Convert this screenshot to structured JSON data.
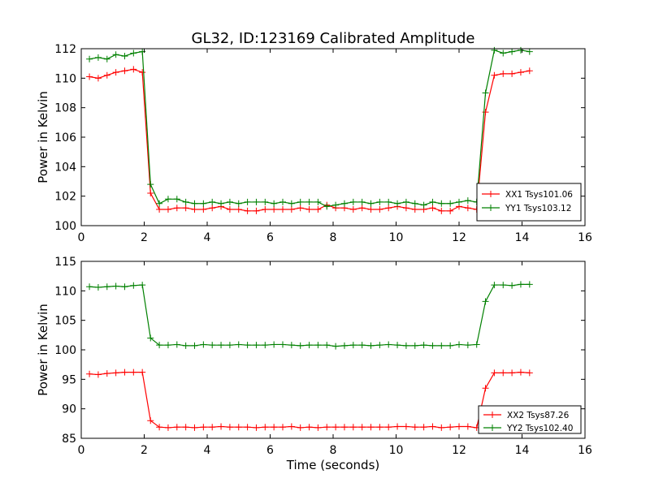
{
  "figure": {
    "title": "GL32, ID:123169 Calibrated Amplitude",
    "xlabel": "Time (seconds)",
    "colors": {
      "red": "#ff0000",
      "green": "#008000"
    }
  },
  "chart_data": [
    {
      "type": "line",
      "title": "GL32, ID:123169 Calibrated Amplitude",
      "xlabel": "",
      "ylabel": "Power in Kelvin",
      "xlim": [
        0,
        16
      ],
      "ylim": [
        100,
        112
      ],
      "xticks": [
        "0",
        "2",
        "4",
        "6",
        "8",
        "10",
        "12",
        "14",
        "16"
      ],
      "yticks": [
        "100",
        "102",
        "104",
        "106",
        "108",
        "110",
        "112"
      ],
      "legend_position": "lower-right",
      "grid": false,
      "x": [
        0.26,
        0.54,
        0.82,
        1.1,
        1.38,
        1.66,
        1.94,
        2.2,
        2.48,
        2.76,
        3.04,
        3.32,
        3.6,
        3.88,
        4.16,
        4.44,
        4.72,
        5.0,
        5.28,
        5.56,
        5.84,
        6.12,
        6.4,
        6.68,
        6.96,
        7.24,
        7.52,
        7.8,
        8.08,
        8.36,
        8.64,
        8.92,
        9.2,
        9.48,
        9.76,
        10.04,
        10.32,
        10.6,
        10.88,
        11.16,
        11.44,
        11.72,
        12.0,
        12.28,
        12.56,
        12.84,
        13.12,
        13.4,
        13.68,
        13.96,
        14.24
      ],
      "series": [
        {
          "name": "XX1 Tsys101.06",
          "color": "#ff0000",
          "values": [
            110.1,
            110.0,
            110.2,
            110.4,
            110.5,
            110.6,
            110.4,
            102.2,
            101.1,
            101.1,
            101.2,
            101.2,
            101.1,
            101.1,
            101.2,
            101.3,
            101.1,
            101.1,
            101.0,
            101.0,
            101.1,
            101.1,
            101.1,
            101.1,
            101.2,
            101.1,
            101.1,
            101.4,
            101.2,
            101.2,
            101.1,
            101.2,
            101.1,
            101.1,
            101.2,
            101.3,
            101.2,
            101.1,
            101.1,
            101.2,
            101.0,
            101.0,
            101.3,
            101.2,
            101.1,
            107.7,
            110.2,
            110.3,
            110.3,
            110.4,
            110.5
          ]
        },
        {
          "name": "YY1 Tsys103.12",
          "color": "#008000",
          "values": [
            111.3,
            111.4,
            111.3,
            111.6,
            111.5,
            111.7,
            111.8,
            102.8,
            101.5,
            101.8,
            101.8,
            101.6,
            101.5,
            101.5,
            101.6,
            101.5,
            101.6,
            101.5,
            101.6,
            101.6,
            101.6,
            101.5,
            101.6,
            101.5,
            101.6,
            101.6,
            101.6,
            101.3,
            101.4,
            101.5,
            101.6,
            101.6,
            101.5,
            101.6,
            101.6,
            101.5,
            101.6,
            101.5,
            101.4,
            101.6,
            101.5,
            101.5,
            101.6,
            101.7,
            101.6,
            109.0,
            111.9,
            111.7,
            111.8,
            111.9,
            111.8
          ]
        }
      ]
    },
    {
      "type": "line",
      "title": "",
      "xlabel": "Time (seconds)",
      "ylabel": "Power in Kelvin",
      "xlim": [
        0,
        16
      ],
      "ylim": [
        85,
        115
      ],
      "xticks": [
        "0",
        "2",
        "4",
        "6",
        "8",
        "10",
        "12",
        "14",
        "16"
      ],
      "yticks": [
        "85",
        "90",
        "95",
        "100",
        "105",
        "110",
        "115"
      ],
      "legend_position": "lower-right",
      "grid": false,
      "x": [
        0.26,
        0.54,
        0.82,
        1.1,
        1.38,
        1.66,
        1.94,
        2.2,
        2.48,
        2.76,
        3.04,
        3.32,
        3.6,
        3.88,
        4.16,
        4.44,
        4.72,
        5.0,
        5.28,
        5.56,
        5.84,
        6.12,
        6.4,
        6.68,
        6.96,
        7.24,
        7.52,
        7.8,
        8.08,
        8.36,
        8.64,
        8.92,
        9.2,
        9.48,
        9.76,
        10.04,
        10.32,
        10.6,
        10.88,
        11.16,
        11.44,
        11.72,
        12.0,
        12.28,
        12.56,
        12.84,
        13.12,
        13.4,
        13.68,
        13.96,
        14.24
      ],
      "series": [
        {
          "name": "XX2 Tsys87.26",
          "color": "#ff0000",
          "values": [
            95.9,
            95.8,
            96.0,
            96.1,
            96.2,
            96.2,
            96.2,
            88.0,
            86.9,
            86.8,
            86.9,
            86.9,
            86.8,
            86.9,
            86.9,
            87.0,
            86.9,
            86.9,
            86.9,
            86.8,
            86.9,
            86.9,
            86.9,
            87.0,
            86.8,
            86.9,
            86.8,
            86.9,
            86.9,
            86.9,
            86.9,
            86.9,
            86.9,
            86.9,
            86.9,
            87.0,
            87.0,
            86.9,
            86.9,
            87.0,
            86.8,
            86.9,
            87.0,
            87.0,
            86.8,
            93.5,
            96.1,
            96.1,
            96.1,
            96.2,
            96.1
          ]
        },
        {
          "name": "YY2 Tsys102.40",
          "color": "#008000",
          "values": [
            110.7,
            110.6,
            110.7,
            110.8,
            110.7,
            110.9,
            111.0,
            102.0,
            100.8,
            100.8,
            100.9,
            100.7,
            100.7,
            100.9,
            100.8,
            100.8,
            100.8,
            100.9,
            100.8,
            100.8,
            100.8,
            100.9,
            100.9,
            100.8,
            100.7,
            100.8,
            100.8,
            100.8,
            100.6,
            100.7,
            100.8,
            100.8,
            100.7,
            100.8,
            100.9,
            100.8,
            100.7,
            100.7,
            100.8,
            100.7,
            100.7,
            100.7,
            100.9,
            100.8,
            100.9,
            108.2,
            111.0,
            111.0,
            110.9,
            111.1,
            111.1
          ]
        }
      ]
    }
  ]
}
